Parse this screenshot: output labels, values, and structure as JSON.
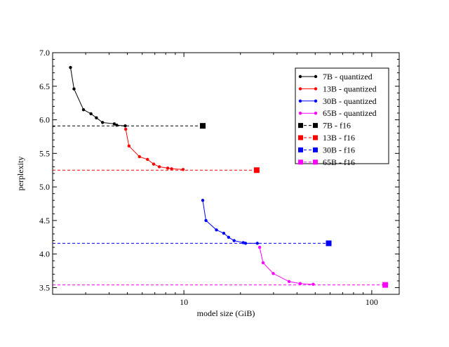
{
  "chart_data": {
    "type": "line",
    "title": "",
    "xlabel": "model size (GiB)",
    "ylabel": "perplexity",
    "xscale": "log",
    "xlim": [
      2,
      140
    ],
    "ylim": [
      3.4,
      7.0
    ],
    "x_ticks": [
      10,
      100
    ],
    "x_tick_labels": [
      "10",
      "100"
    ],
    "y_ticks": [
      3.5,
      4.0,
      4.5,
      5.0,
      5.5,
      6.0,
      6.5,
      7.0
    ],
    "y_tick_labels": [
      "3.5",
      "4.0",
      "4.5",
      "5.0",
      "5.5",
      "6.0",
      "6.5",
      "7.0"
    ],
    "grid": false,
    "legend_position": "top-right",
    "series": [
      {
        "name": "7B - quantized",
        "color": "#000000",
        "style": "solid",
        "marker": "circle",
        "x": [
          2.49,
          2.6,
          2.92,
          3.2,
          3.42,
          3.69,
          4.26,
          4.39,
          4.87
        ],
        "y": [
          6.78,
          6.46,
          6.15,
          6.09,
          6.03,
          5.96,
          5.94,
          5.92,
          5.91
        ]
      },
      {
        "name": "13B - quantized",
        "color": "#ff0000",
        "style": "solid",
        "marker": "circle",
        "x": [
          4.9,
          5.1,
          5.8,
          6.4,
          6.9,
          7.4,
          8.2,
          8.6,
          9.9
        ],
        "y": [
          5.86,
          5.61,
          5.45,
          5.41,
          5.34,
          5.3,
          5.28,
          5.27,
          5.26
        ]
      },
      {
        "name": "30B - quantized",
        "color": "#0000ff",
        "style": "solid",
        "marker": "circle",
        "x": [
          12.6,
          13.1,
          14.9,
          16.3,
          17.3,
          18.5,
          20.7,
          21.3,
          24.6
        ],
        "y": [
          4.8,
          4.5,
          4.36,
          4.31,
          4.25,
          4.2,
          4.17,
          4.16,
          4.16
        ]
      },
      {
        "name": "65B - quantized",
        "color": "#ff00ff",
        "style": "solid",
        "marker": "circle",
        "x": [
          25.3,
          26.4,
          29.9,
          36.3,
          41.6,
          48.8
        ],
        "y": [
          4.1,
          3.87,
          3.71,
          3.59,
          3.56,
          3.55
        ]
      },
      {
        "name": "7B - f16",
        "color": "#000000",
        "style": "dashed",
        "marker": "square",
        "x": [
          2,
          12.6
        ],
        "y": [
          5.91,
          5.91
        ]
      },
      {
        "name": "13B - f16",
        "color": "#ff0000",
        "style": "dashed",
        "marker": "square",
        "x": [
          2,
          24.4
        ],
        "y": [
          5.25,
          5.25
        ]
      },
      {
        "name": "30B - f16",
        "color": "#0000ff",
        "style": "dashed",
        "marker": "square",
        "x": [
          2,
          59.0
        ],
        "y": [
          4.16,
          4.16
        ]
      },
      {
        "name": "65B - f16",
        "color": "#ff00ff",
        "style": "dashed",
        "marker": "square",
        "x": [
          2,
          118.0
        ],
        "y": [
          3.54,
          3.54
        ]
      }
    ]
  }
}
